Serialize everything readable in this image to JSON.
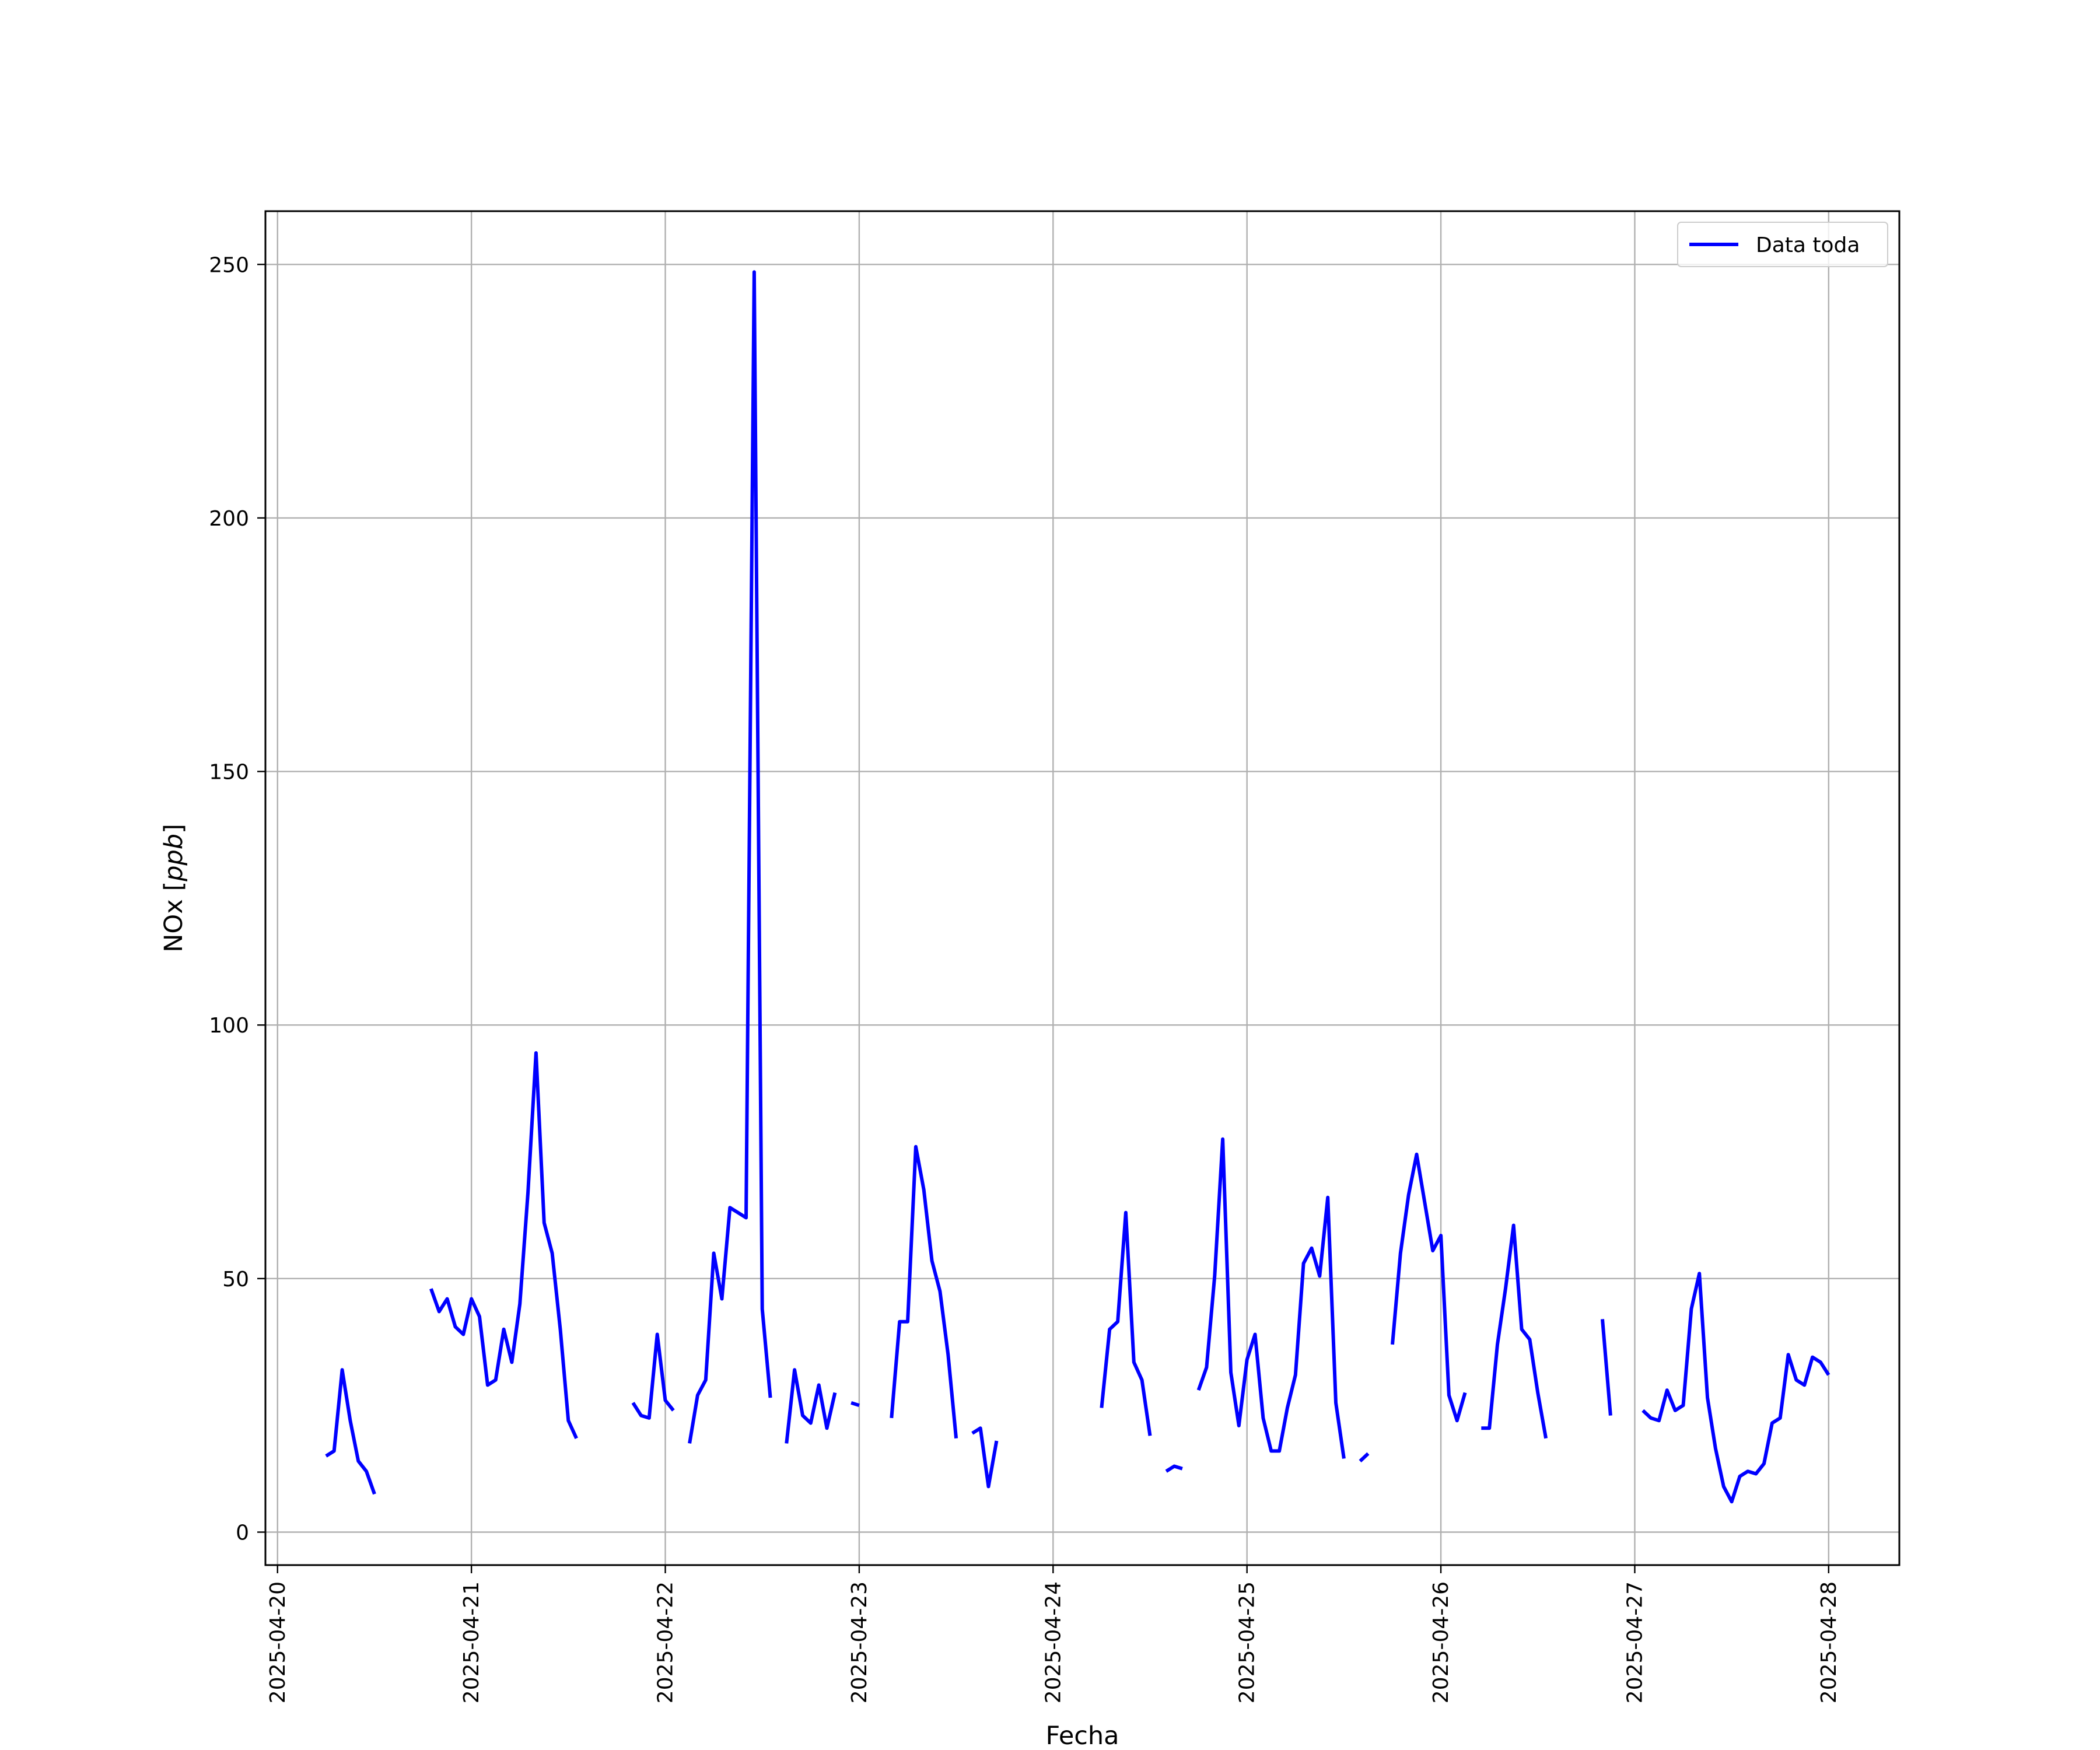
{
  "chart_data": {
    "type": "line",
    "title": "",
    "xlabel": "Fecha",
    "ylabel_text": "NOx ",
    "ylabel_unit": "ppb",
    "x_ticks": [
      "2025-04-20",
      "2025-04-21",
      "2025-04-22",
      "2025-04-23",
      "2025-04-24",
      "2025-04-25",
      "2025-04-26",
      "2025-04-27",
      "2025-04-28"
    ],
    "y_ticks": [
      "0",
      "50",
      "100",
      "150",
      "200",
      "250"
    ],
    "xlim": [
      "2025-04-19T22:30",
      "2025-04-28T08:45"
    ],
    "ylim": [
      -6.5,
      260.5
    ],
    "grid": true,
    "legend_position": "top-right",
    "series": [
      {
        "name": "Data toda",
        "color": "#0000ff",
        "segments": [
          [
            [
              "2025-04-20T06:00",
              15.0
            ],
            [
              "2025-04-20T07:00",
              16.0
            ],
            [
              "2025-04-20T08:00",
              32.0
            ],
            [
              "2025-04-20T09:00",
              22.0
            ],
            [
              "2025-04-20T10:00",
              14.0
            ],
            [
              "2025-04-20T11:00",
              12.0
            ],
            [
              "2025-04-20T12:00",
              7.5
            ]
          ],
          [
            [
              "2025-04-20T19:00",
              48.0
            ],
            [
              "2025-04-20T20:00",
              43.5
            ],
            [
              "2025-04-20T21:00",
              46.0
            ],
            [
              "2025-04-20T22:00",
              40.5
            ],
            [
              "2025-04-20T23:00",
              39.0
            ],
            [
              "2025-04-21T00:00",
              46.0
            ],
            [
              "2025-04-21T01:00",
              42.5
            ],
            [
              "2025-04-21T02:00",
              29.0
            ],
            [
              "2025-04-21T03:00",
              30.0
            ],
            [
              "2025-04-21T04:00",
              40.0
            ],
            [
              "2025-04-21T05:00",
              33.5
            ],
            [
              "2025-04-21T06:00",
              45.0
            ],
            [
              "2025-04-21T07:00",
              67.0
            ],
            [
              "2025-04-21T08:00",
              94.5
            ],
            [
              "2025-04-21T09:00",
              61.0
            ],
            [
              "2025-04-21T10:00",
              55.0
            ],
            [
              "2025-04-21T11:00",
              40.0
            ],
            [
              "2025-04-21T12:00",
              22.0
            ],
            [
              "2025-04-21T13:00",
              18.5
            ]
          ],
          [
            [
              "2025-04-21T20:00",
              25.5
            ],
            [
              "2025-04-21T21:00",
              23.0
            ],
            [
              "2025-04-21T22:00",
              22.5
            ],
            [
              "2025-04-21T23:00",
              39.0
            ],
            [
              "2025-04-22T00:00",
              26.0
            ],
            [
              "2025-04-22T01:00",
              24.0
            ]
          ],
          [
            [
              "2025-04-22T03:00",
              17.5
            ],
            [
              "2025-04-22T04:00",
              27.0
            ],
            [
              "2025-04-22T05:00",
              30.0
            ],
            [
              "2025-04-22T06:00",
              55.0
            ],
            [
              "2025-04-22T07:00",
              46.0
            ],
            [
              "2025-04-22T08:00",
              64.0
            ],
            [
              "2025-04-22T09:00",
              63.0
            ],
            [
              "2025-04-22T10:00",
              62.0
            ],
            [
              "2025-04-22T11:00",
              248.5
            ],
            [
              "2025-04-22T12:00",
              44.0
            ],
            [
              "2025-04-22T13:00",
              26.5
            ]
          ],
          [
            [
              "2025-04-22T15:00",
              17.5
            ],
            [
              "2025-04-22T16:00",
              32.0
            ],
            [
              "2025-04-22T17:00",
              23.0
            ],
            [
              "2025-04-22T18:00",
              21.5
            ],
            [
              "2025-04-22T19:00",
              29.0
            ],
            [
              "2025-04-22T20:00",
              20.5
            ],
            [
              "2025-04-22T21:00",
              27.5
            ]
          ],
          [
            [
              "2025-04-22T23:00",
              25.5
            ],
            [
              "2025-04-23T00:00",
              25.0
            ]
          ],
          [
            [
              "2025-04-23T04:00",
              22.5
            ],
            [
              "2025-04-23T05:00",
              41.5
            ],
            [
              "2025-04-23T06:00",
              41.5
            ],
            [
              "2025-04-23T07:00",
              76.0
            ],
            [
              "2025-04-23T08:00",
              67.5
            ],
            [
              "2025-04-23T09:00",
              53.5
            ],
            [
              "2025-04-23T10:00",
              47.5
            ],
            [
              "2025-04-23T11:00",
              35.0
            ],
            [
              "2025-04-23T12:00",
              18.5
            ]
          ],
          [
            [
              "2025-04-23T14:00",
              19.5
            ],
            [
              "2025-04-23T15:00",
              20.5
            ],
            [
              "2025-04-23T16:00",
              9.0
            ],
            [
              "2025-04-23T17:00",
              18.0
            ]
          ],
          [
            [
              "2025-04-24T06:00",
              24.5
            ],
            [
              "2025-04-24T07:00",
              40.0
            ],
            [
              "2025-04-24T08:00",
              41.5
            ],
            [
              "2025-04-24T09:00",
              63.0
            ],
            [
              "2025-04-24T10:00",
              33.5
            ],
            [
              "2025-04-24T11:00",
              30.0
            ],
            [
              "2025-04-24T12:00",
              19.0
            ]
          ],
          [
            [
              "2025-04-24T14:00",
              12.0
            ],
            [
              "2025-04-24T15:00",
              13.0
            ],
            [
              "2025-04-24T16:00",
              12.5
            ]
          ],
          [
            [
              "2025-04-24T18:00",
              28.0
            ],
            [
              "2025-04-24T19:00",
              32.5
            ],
            [
              "2025-04-24T20:00",
              50.5
            ],
            [
              "2025-04-24T21:00",
              77.5
            ],
            [
              "2025-04-24T22:00",
              31.5
            ],
            [
              "2025-04-24T23:00",
              21.0
            ],
            [
              "2025-04-25T00:00",
              34.0
            ],
            [
              "2025-04-25T01:00",
              39.0
            ],
            [
              "2025-04-25T02:00",
              22.5
            ],
            [
              "2025-04-25T03:00",
              16.0
            ],
            [
              "2025-04-25T04:00",
              16.0
            ],
            [
              "2025-04-25T05:00",
              24.5
            ],
            [
              "2025-04-25T06:00",
              31.0
            ],
            [
              "2025-04-25T07:00",
              53.0
            ],
            [
              "2025-04-25T08:00",
              56.0
            ],
            [
              "2025-04-25T09:00",
              50.5
            ],
            [
              "2025-04-25T10:00",
              66.0
            ],
            [
              "2025-04-25T11:00",
              25.5
            ],
            [
              "2025-04-25T12:00",
              14.5
            ]
          ],
          [
            [
              "2025-04-25T14:00",
              14.0
            ],
            [
              "2025-04-25T15:00",
              15.5
            ]
          ],
          [
            [
              "2025-04-25T18:00",
              37.0
            ],
            [
              "2025-04-25T19:00",
              55.0
            ],
            [
              "2025-04-25T20:00",
              66.5
            ],
            [
              "2025-04-25T21:00",
              74.5
            ],
            [
              "2025-04-25T22:00",
              65.0
            ],
            [
              "2025-04-25T23:00",
              55.5
            ],
            [
              "2025-04-26T00:00",
              58.5
            ],
            [
              "2025-04-26T01:00",
              27.0
            ],
            [
              "2025-04-26T02:00",
              22.0
            ],
            [
              "2025-04-26T03:00",
              27.5
            ]
          ],
          [
            [
              "2025-04-26T05:00",
              20.5
            ],
            [
              "2025-04-26T06:00",
              20.5
            ],
            [
              "2025-04-26T07:00",
              37.0
            ],
            [
              "2025-04-26T08:00",
              48.0
            ],
            [
              "2025-04-26T09:00",
              60.5
            ],
            [
              "2025-04-26T10:00",
              40.0
            ],
            [
              "2025-04-26T11:00",
              38.0
            ],
            [
              "2025-04-26T12:00",
              27.5
            ],
            [
              "2025-04-26T13:00",
              18.5
            ]
          ],
          [
            [
              "2025-04-26T20:00",
              42.0
            ],
            [
              "2025-04-26T21:00",
              23.0
            ]
          ],
          [
            [
              "2025-04-27T01:00",
              24.0
            ],
            [
              "2025-04-27T02:00",
              22.5
            ],
            [
              "2025-04-27T03:00",
              22.0
            ],
            [
              "2025-04-27T04:00",
              28.0
            ],
            [
              "2025-04-27T05:00",
              24.0
            ],
            [
              "2025-04-27T06:00",
              25.0
            ],
            [
              "2025-04-27T07:00",
              44.0
            ],
            [
              "2025-04-27T08:00",
              51.0
            ],
            [
              "2025-04-27T09:00",
              26.5
            ],
            [
              "2025-04-27T10:00",
              16.5
            ],
            [
              "2025-04-27T11:00",
              9.0
            ],
            [
              "2025-04-27T12:00",
              6.0
            ],
            [
              "2025-04-27T13:00",
              11.0
            ],
            [
              "2025-04-27T14:00",
              12.0
            ],
            [
              "2025-04-27T15:00",
              11.5
            ],
            [
              "2025-04-27T16:00",
              13.5
            ],
            [
              "2025-04-27T17:00",
              21.5
            ],
            [
              "2025-04-27T18:00",
              22.5
            ],
            [
              "2025-04-27T19:00",
              35.0
            ],
            [
              "2025-04-27T20:00",
              30.0
            ],
            [
              "2025-04-27T21:00",
              29.0
            ],
            [
              "2025-04-27T22:00",
              34.5
            ],
            [
              "2025-04-27T23:00",
              33.5
            ],
            [
              "2025-04-28T00:00",
              31.0
            ]
          ]
        ]
      }
    ]
  }
}
